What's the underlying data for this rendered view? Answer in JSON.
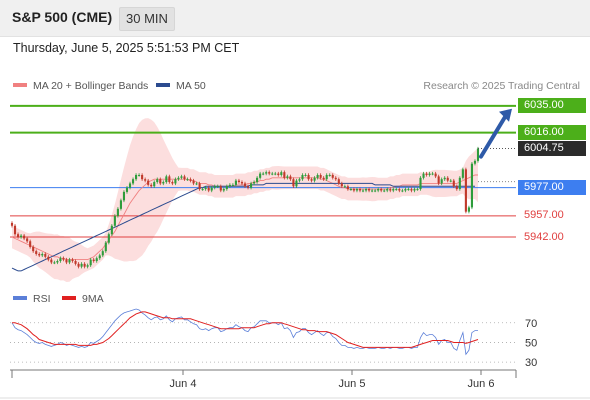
{
  "header": {
    "title": "S&P 500 (CME)",
    "timeframe": "30 MIN"
  },
  "datetime": "Thursday, June 5, 2025 5:51:53 PM CET",
  "legend": {
    "ma20": {
      "label": "MA 20 + Bollinger Bands",
      "color": "#f08080"
    },
    "ma50": {
      "label": "MA 50",
      "color": "#2b4b8f"
    }
  },
  "credit": "Research © 2025 Trading Central",
  "rsi_legend": {
    "rsi": {
      "label": "RSI",
      "color": "#5b7fd8"
    },
    "ma9": {
      "label": "9MA",
      "color": "#e02020"
    }
  },
  "levels": [
    {
      "value": 6035.0,
      "label": "6035.00",
      "type": "resistance",
      "color": "#4caf1a"
    },
    {
      "value": 6016.0,
      "label": "6016.00",
      "type": "resistance",
      "color": "#4caf1a"
    },
    {
      "value": 5977.0,
      "label": "5977.00",
      "type": "pivot",
      "color": "#3d7ef0"
    },
    {
      "value": 5957.0,
      "label": "5957.00",
      "type": "support",
      "color": "#e04040"
    },
    {
      "value": 5942.0,
      "label": "5942.00",
      "type": "support",
      "color": "#e04040"
    }
  ],
  "current_price": {
    "value": 6004.75,
    "label": "6004.75"
  },
  "x_labels": [
    "Jun 4",
    "Jun 5",
    "Jun 6"
  ],
  "rsi_ticks": [
    "70",
    "50",
    "30"
  ],
  "chart_data": [
    {
      "type": "candlestick",
      "title": "S&P 500 (CME)",
      "x_labels": [
        "Jun 4",
        "Jun 5",
        "Jun 6"
      ],
      "ylim": [
        5908,
        6042
      ],
      "levels": [
        6035.0,
        6016.0,
        5977.0,
        5957.0,
        5942.0
      ],
      "last": 6004.75,
      "close": [
        5950,
        5944,
        5942,
        5943,
        5941,
        5939,
        5935,
        5932,
        5930,
        5929,
        5930,
        5928,
        5926,
        5924,
        5924,
        5925,
        5927,
        5926,
        5924,
        5926,
        5925,
        5923,
        5921,
        5923,
        5921,
        5922,
        5926,
        5925,
        5927,
        5929,
        5932,
        5938,
        5944,
        5950,
        5957,
        5962,
        5968,
        5974,
        5977,
        5980,
        5983,
        5986,
        5986,
        5983,
        5982,
        5979,
        5978,
        5981,
        5983,
        5980,
        5981,
        5985,
        5981,
        5980,
        5983,
        5984,
        5985,
        5983,
        5983,
        5982,
        5980,
        5980,
        5976,
        5976,
        5977,
        5975,
        5977,
        5978,
        5978,
        5975,
        5976,
        5978,
        5979,
        5979,
        5982,
        5981,
        5980,
        5978,
        5977,
        5980,
        5981,
        5984,
        5987,
        5987,
        5988,
        5987,
        5987,
        5987,
        5986,
        5988,
        5984,
        5985,
        5983,
        5978,
        5982,
        5983,
        5986,
        5986,
        5983,
        5982,
        5984,
        5986,
        5984,
        5983,
        5986,
        5986,
        5984,
        5983,
        5980,
        5978,
        5978,
        5976,
        5976,
        5975,
        5976,
        5975,
        5975,
        5976,
        5975,
        5975,
        5975,
        5976,
        5975,
        5975,
        5976,
        5975,
        5976,
        5976,
        5975,
        5975,
        5976,
        5976,
        5975,
        5976,
        5976,
        5984,
        5987,
        5986,
        5987,
        5987,
        5985,
        5980,
        5983,
        5984,
        5982,
        5982,
        5978,
        5976,
        5984,
        5990,
        5960,
        5963,
        5994,
        5996,
        6004.75
      ],
      "ma50": [
        5920,
        5919,
        5918,
        5918,
        5919,
        5920,
        5921,
        5922,
        5923,
        5924,
        5925,
        5926,
        5927,
        5928,
        5929,
        5930,
        5931,
        5932,
        5933,
        5934,
        5935,
        5936,
        5937,
        5938,
        5939,
        5940,
        5941,
        5942,
        5943,
        5944,
        5945,
        5946,
        5947,
        5948,
        5949,
        5950,
        5951,
        5952,
        5953,
        5954,
        5955,
        5956,
        5957,
        5958,
        5959,
        5960,
        5961,
        5962,
        5963,
        5964,
        5965,
        5966,
        5967,
        5968,
        5969,
        5970,
        5971,
        5972,
        5973,
        5974,
        5975,
        5976,
        5977,
        5977,
        5978,
        5978,
        5978,
        5978,
        5978,
        5978,
        5978,
        5978,
        5978,
        5978,
        5978,
        5978,
        5978,
        5978,
        5978,
        5979,
        5979,
        5979,
        5979,
        5979,
        5980,
        5980,
        5980,
        5980,
        5980,
        5980,
        5980,
        5980,
        5980,
        5980,
        5980,
        5980,
        5980,
        5980,
        5980,
        5980,
        5980,
        5980,
        5980,
        5980,
        5980,
        5980,
        5980,
        5980,
        5980,
        5980,
        5980,
        5980,
        5980,
        5980,
        5980,
        5980,
        5980,
        5980,
        5980,
        5980,
        5979,
        5979,
        5979,
        5979,
        5979,
        5979,
        5978,
        5978,
        5978,
        5978,
        5978,
        5978,
        5978,
        5978,
        5978,
        5978,
        5978,
        5978,
        5978,
        5978,
        5978,
        5978,
        5978,
        5978,
        5978,
        5978,
        5978,
        5978,
        5978,
        5978,
        5978,
        5978,
        5978,
        5978
      ],
      "ma20": [
        5942,
        5941,
        5940,
        5939,
        5938,
        5937,
        5936,
        5935,
        5934,
        5933,
        5932,
        5931,
        5930,
        5929,
        5928,
        5928,
        5927,
        5927,
        5926,
        5926,
        5926,
        5926,
        5926,
        5926,
        5926,
        5926,
        5927,
        5928,
        5930,
        5932,
        5934,
        5937,
        5940,
        5943,
        5946,
        5950,
        5954,
        5958,
        5962,
        5966,
        5969,
        5972,
        5975,
        5977,
        5979,
        5981,
        5982,
        5983,
        5983,
        5983,
        5983,
        5983,
        5983,
        5983,
        5983,
        5983,
        5983,
        5983,
        5983,
        5982,
        5982,
        5981,
        5980,
        5980,
        5980,
        5979,
        5979,
        5978,
        5978,
        5978,
        5978,
        5978,
        5978,
        5978,
        5979,
        5979,
        5979,
        5979,
        5980,
        5980,
        5981,
        5981,
        5982,
        5982,
        5983,
        5983,
        5984,
        5984,
        5984,
        5984,
        5984,
        5984,
        5984,
        5984,
        5984,
        5984,
        5984,
        5984,
        5984,
        5984,
        5984,
        5984,
        5983,
        5983,
        5982,
        5981,
        5980,
        5979,
        5978,
        5977,
        5977,
        5976,
        5976,
        5976,
        5976,
        5976,
        5976,
        5976,
        5976,
        5976,
        5976,
        5976,
        5976,
        5976,
        5976,
        5977,
        5977,
        5978,
        5978,
        5979,
        5979,
        5979,
        5979,
        5979,
        5979,
        5980,
        5980,
        5980,
        5980,
        5980,
        5980,
        5980,
        5980,
        5980,
        5980,
        5980,
        5980,
        5980,
        5981,
        5982,
        5983,
        5984,
        5985,
        5986,
        5986
      ]
    },
    {
      "type": "line",
      "series": [
        {
          "name": "RSI",
          "values": [
            70,
            65,
            63,
            62,
            60,
            58,
            55,
            52,
            50,
            49,
            50,
            48,
            47,
            46,
            47,
            48,
            50,
            49,
            47,
            48,
            47,
            46,
            45,
            46,
            45,
            46,
            50,
            49,
            51,
            53,
            56,
            60,
            64,
            68,
            72,
            75,
            78,
            80,
            81,
            82,
            83,
            84,
            83,
            80,
            78,
            75,
            73,
            75,
            76,
            73,
            74,
            77,
            73,
            71,
            74,
            75,
            76,
            73,
            73,
            71,
            69,
            68,
            64,
            63,
            64,
            62,
            64,
            65,
            65,
            61,
            62,
            64,
            65,
            65,
            68,
            66,
            65,
            62,
            61,
            65,
            66,
            69,
            72,
            72,
            72,
            70,
            70,
            70,
            68,
            70,
            64,
            65,
            62,
            55,
            60,
            61,
            64,
            64,
            60,
            58,
            60,
            62,
            59,
            57,
            60,
            60,
            56,
            54,
            50,
            47,
            47,
            45,
            45,
            44,
            45,
            44,
            44,
            45,
            44,
            44,
            44,
            45,
            44,
            44,
            45,
            44,
            45,
            45,
            44,
            44,
            45,
            45,
            44,
            45,
            45,
            55,
            60,
            57,
            58,
            58,
            55,
            48,
            52,
            53,
            50,
            50,
            44,
            42,
            52,
            60,
            38,
            42,
            60,
            62,
            62
          ]
        },
        {
          "name": "9MA",
          "values": [
            70,
            70,
            69,
            68,
            66,
            64,
            61,
            58,
            56,
            53,
            52,
            51,
            50,
            49,
            48,
            48,
            48,
            48,
            48,
            48,
            48,
            48,
            47,
            47,
            47,
            47,
            47,
            48,
            48,
            49,
            50,
            52,
            54,
            57,
            60,
            63,
            66,
            69,
            72,
            75,
            77,
            79,
            80,
            81,
            81,
            80,
            79,
            78,
            77,
            76,
            75,
            75,
            75,
            74,
            74,
            74,
            74,
            74,
            74,
            74,
            73,
            72,
            71,
            70,
            69,
            68,
            67,
            66,
            65,
            64,
            64,
            64,
            64,
            64,
            64,
            64,
            65,
            65,
            65,
            65,
            65,
            66,
            67,
            68,
            69,
            69,
            70,
            70,
            70,
            70,
            69,
            68,
            67,
            66,
            65,
            64,
            63,
            63,
            62,
            62,
            62,
            61,
            61,
            61,
            61,
            60,
            59,
            58,
            56,
            54,
            52,
            50,
            49,
            48,
            47,
            46,
            45,
            45,
            45,
            45,
            45,
            45,
            45,
            45,
            45,
            45,
            45,
            45,
            45,
            45,
            45,
            45,
            45,
            46,
            47,
            48,
            49,
            50,
            51,
            52,
            52,
            52,
            52,
            52,
            52,
            51,
            50,
            50,
            50,
            50,
            49,
            50,
            51,
            52,
            53
          ]
        }
      ],
      "ylim": [
        20,
        85
      ],
      "y_ticks": [
        70,
        50,
        30
      ],
      "x_labels": [
        "Jun 4",
        "Jun 5",
        "Jun 6"
      ]
    }
  ]
}
